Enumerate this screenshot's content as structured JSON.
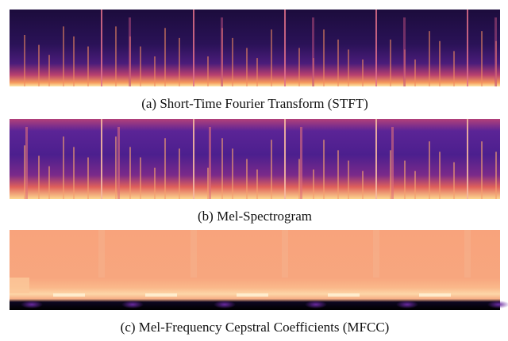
{
  "figure": {
    "panels": [
      {
        "caption": "(a) Short-Time Fourier Transform (STFT)"
      },
      {
        "caption": "(b) Mel-Spectrogram"
      },
      {
        "caption": "(c) Mel-Frequency Cepstral Coefficients (MFCC)"
      }
    ]
  }
}
